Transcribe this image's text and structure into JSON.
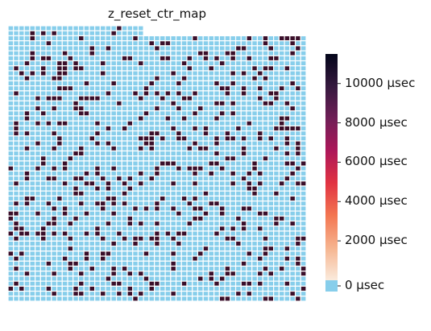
{
  "chart_data": {
    "type": "heatmap",
    "title": "z_reset_ctr_map",
    "xlabel": "",
    "ylabel": "",
    "grid_rows": 55,
    "grid_cols": 55,
    "cell_values_usec": [
      0,
      11500
    ],
    "nonzero_fraction": 0.17,
    "top_left_missing_block": {
      "rows": 2,
      "cols": 25
    },
    "color_scale": {
      "min": 0,
      "max": 11500,
      "ticks": [
        0,
        2000,
        4000,
        6000,
        8000,
        10000
      ],
      "tick_labels": [
        "0 µsec",
        "2000 µsec",
        "4000 µsec",
        "6000 µsec",
        "8000 µsec",
        "10000 µsec"
      ],
      "zero_color": "#87ceeb",
      "colormap": [
        "#faebdd",
        "#f6b48f",
        "#f37651",
        "#e13342",
        "#ad1759",
        "#701f57",
        "#35193e",
        "#03051a"
      ]
    },
    "grid_line_color": "#ffffff",
    "grid": "on",
    "legend": "colorbar-right"
  }
}
